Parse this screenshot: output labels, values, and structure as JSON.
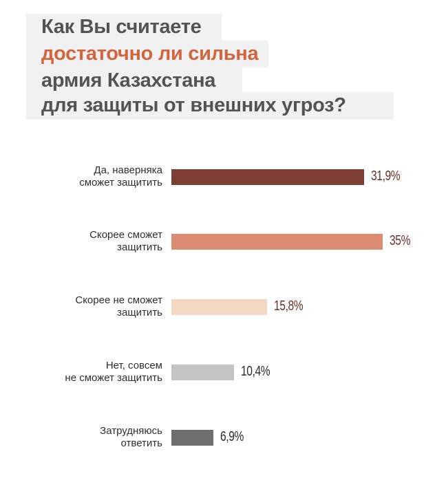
{
  "chart_data": {
    "type": "bar",
    "orientation": "horizontal",
    "title_lines": [
      "Как Вы считаете",
      "достаточно ли сильна",
      "армия Казахстана",
      "для защиты от внешних угроз?"
    ],
    "categories": [
      [
        "Да, наверняка",
        "сможет защитить"
      ],
      [
        "Скорее сможет",
        "защитить"
      ],
      [
        "Скорее не сможет",
        "защитить"
      ],
      [
        "Нет, совсем",
        "не сможет защитить"
      ],
      [
        "Затрудняюсь",
        "ответить"
      ]
    ],
    "values": [
      31.9,
      35,
      15.8,
      10.4,
      6.9
    ],
    "value_labels": [
      "31,9%",
      "35%",
      "15,8%",
      "10,4%",
      "6,9%"
    ],
    "unit": "%",
    "bar_colors": [
      "#7d3f35",
      "#dc8c70",
      "#f4d8c2",
      "#c3c3c5",
      "#6e6e70"
    ],
    "label_colors": [
      "#6b2f2a",
      "#6b2f2a",
      "#6b2f2a",
      "#2a2a2a",
      "#2a2a2a"
    ],
    "accent_color": "#d2643e",
    "grid": false
  }
}
